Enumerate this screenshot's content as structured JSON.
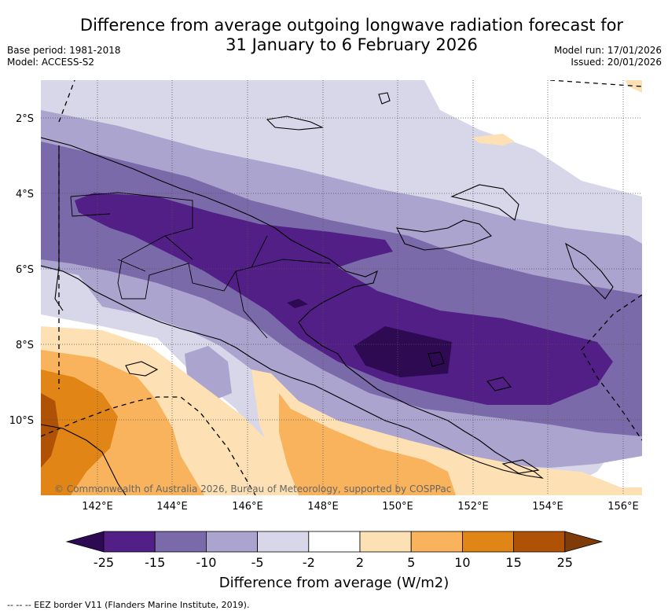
{
  "title_line1": "Difference from average outgoing longwave radiation forecast for",
  "title_line2": "31 January to 6 February 2026",
  "base_period": "Base period: 1981-2018",
  "model": "Model: ACCESS-S2",
  "model_run": "Model run: 17/01/2026",
  "issued": "Issued: 20/01/2026",
  "copyright": "© Commonwealth of Australia 2026, Bureau of Meteorology, supported by COSPPac",
  "lat_labels": [
    "2°S",
    "4°S",
    "6°S",
    "8°S",
    "10°S"
  ],
  "lon_labels": [
    "142°E",
    "144°E",
    "146°E",
    "148°E",
    "150°E",
    "152°E",
    "154°E",
    "156°E"
  ],
  "colorbar": {
    "ticks": [
      "-25",
      "-15",
      "-10",
      "-5",
      "-2",
      "2",
      "5",
      "10",
      "15",
      "25"
    ],
    "colors": [
      "#521f86",
      "#7b6aaa",
      "#aba4ce",
      "#d8d7ea",
      "#ffffff",
      "#fde0b3",
      "#f9b35c",
      "#e08516",
      "#b05206"
    ],
    "under_color": "#2d0a51",
    "over_color": "#7f3b08",
    "label": "Difference from average (W/m2)"
  },
  "footnote": "--  --  -- EEZ border V11 (Flanders Marine Institute, 2019)."
}
